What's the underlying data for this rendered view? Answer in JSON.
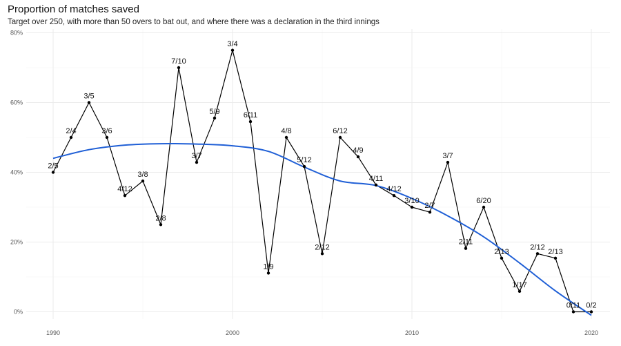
{
  "chart_data": {
    "type": "line",
    "title": "Proportion of matches saved",
    "subtitle": "Target over 250, with more than 50 overs to bat out, and where there was a declaration in the third innings",
    "xlabel": "",
    "ylabel": "",
    "xlim": [
      1990,
      2020
    ],
    "ylim": [
      0,
      0.8
    ],
    "x_ticks": [
      "1990",
      "2000",
      "2010",
      "2020"
    ],
    "y_ticks": [
      "0%",
      "20%",
      "40%",
      "60%",
      "80%"
    ],
    "grid": true,
    "colors": {
      "line": "#000000",
      "smooth": "#1f5fd6",
      "grid": "#ebebeb"
    },
    "series": [
      {
        "type": "line",
        "x": [
          1990,
          1991,
          1992,
          1993,
          1994,
          1995,
          1996,
          1997,
          1998,
          1999,
          2000,
          2001,
          2002,
          2003,
          2004,
          2005,
          2006,
          2007,
          2008,
          2009,
          2010,
          2011,
          2012,
          2013,
          2014,
          2015,
          2016,
          2017,
          2018,
          2019,
          2020
        ],
        "y": [
          0.4,
          0.5,
          0.6,
          0.5,
          0.3333,
          0.375,
          0.25,
          0.7,
          0.4286,
          0.5556,
          0.75,
          0.5455,
          0.1111,
          0.5,
          0.4167,
          0.1667,
          0.5,
          0.4444,
          0.3636,
          0.3333,
          0.3,
          0.2857,
          0.4286,
          0.1818,
          0.3,
          0.1538,
          0.0588,
          0.1667,
          0.1538,
          0.0,
          0.0
        ],
        "labels": [
          "2/5",
          "2/4",
          "3/5",
          "3/6",
          "4/12",
          "3/8",
          "2/8",
          "7/10",
          "3/7",
          "5/9",
          "3/4",
          "6/11",
          "1/9",
          "4/8",
          "5/12",
          "2/12",
          "6/12",
          "4/9",
          "4/11",
          "4/12",
          "3/10",
          "2/7",
          "3/7",
          "2/11",
          "6/20",
          "2/13",
          "1/17",
          "2/12",
          "2/13",
          "0/11",
          "0/2"
        ]
      },
      {
        "type": "smooth",
        "x": [
          1990,
          1992,
          1994,
          1996,
          1998,
          2000,
          2002,
          2004,
          2006,
          2008,
          2010,
          2012,
          2014,
          2016,
          2018,
          2020
        ],
        "y": [
          0.44,
          0.465,
          0.478,
          0.482,
          0.481,
          0.476,
          0.46,
          0.415,
          0.375,
          0.362,
          0.325,
          0.275,
          0.215,
          0.14,
          0.06,
          -0.01
        ]
      }
    ]
  }
}
